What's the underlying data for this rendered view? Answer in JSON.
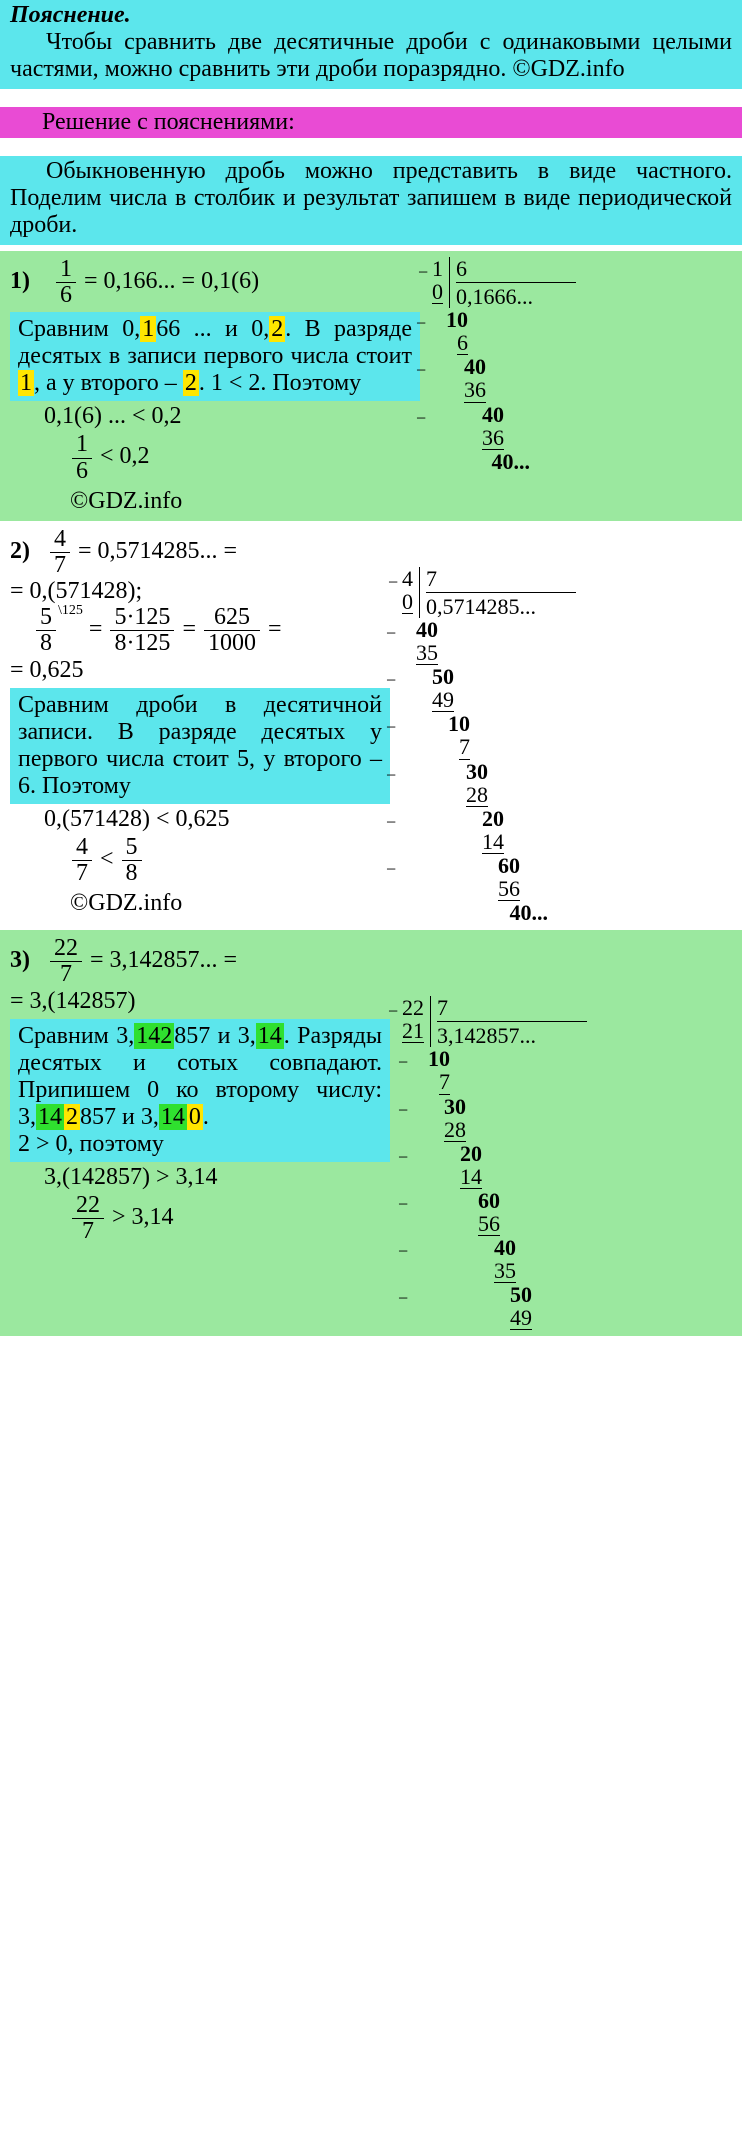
{
  "explain": {
    "title": "Пояснение.",
    "body": "Чтобы сравнить две десятичные дроби с одинаковыми целыми частями, можно сравнить эти дроби поразрядно. ©GDZ.info"
  },
  "solution_header": "Решение с пояснениями:",
  "intro": "Обыкновенную дробь можно представить в виде частного. Поделим числа в столбик и результат запишем в виде периодической дроби.",
  "p1": {
    "num": "1)",
    "frac_n": "1",
    "frac_d": "6",
    "eq_line": "= 0,166... = 0,1(6)",
    "compare1": "Сравним 0,",
    "compare1_h": "1",
    "compare1b": "66 ... и 0,",
    "compare1_h2": "2",
    "compare1c": ". В разряде десятых в записи первого числа стоит ",
    "compare1_h3": "1",
    "compare1d": ", а у второго – ",
    "compare1_h4": "2",
    "compare1e": ". 1 < 2. Поэтому",
    "res1": "0,1(6) ... < 0,2",
    "res2_n": "1",
    "res2_d": "6",
    "res2_tail": " < 0,2",
    "credit": "©GDZ.info",
    "ld": {
      "dividend": "1",
      "divisor": "6",
      "quotient": "0,1666...",
      "s1_ul": "0",
      "s2": "10",
      "s2_ul": "6",
      "s3": "40",
      "s3_ul": "36",
      "s4": "40",
      "s4_ul": "36",
      "s5": "40..."
    }
  },
  "p2": {
    "num": "2)",
    "frac_n": "4",
    "frac_d": "7",
    "eq1": "= 0,5714285... =",
    "eq2": "= 0,(571428);",
    "frac2_n": "5",
    "frac2_d": "8",
    "exp": "\\125",
    "mid": "=",
    "mn": "5·125",
    "md": "8·125",
    "eq3": "=",
    "rn": "625",
    "rd": "1000",
    "eq4": "=",
    "eq5": "= 0,625",
    "compare": "Сравним дроби в десятичной записи. В разряде десятых у первого числа стоит 5, у второго – 6. Поэтому",
    "res1": "0,(571428) < 0,625",
    "res2a_n": "4",
    "res2a_d": "7",
    "res2_lt": " < ",
    "res2b_n": "5",
    "res2b_d": "8",
    "credit": "©GDZ.info",
    "ld": {
      "dividend": "4",
      "divisor": "7",
      "quotient": "0,5714285...",
      "s1_ul": "0",
      "s2": "40",
      "s2_ul": "35",
      "s3": "50",
      "s3_ul": "49",
      "s4": "10",
      "s4_ul": "7",
      "s5": "30",
      "s5_ul": "28",
      "s6": "20",
      "s6_ul": "14",
      "s7": "60",
      "s7_ul": "56",
      "s8": "40..."
    }
  },
  "p3": {
    "num": "3)",
    "frac_n": "22",
    "frac_d": "7",
    "eq1": "= 3,142857... =",
    "eq2": "= 3,(142857)",
    "cmp_a": "Сравним 3,",
    "cmp_h1": "142",
    "cmp_b": "857 и 3,",
    "cmp_h2": "14",
    "cmp_c": ". Разряды десятых и сотых совпадают. Припишем 0 ко второму числу: 3,",
    "cmp_h3": "142",
    "cmp_d": "857 и 3,",
    "cmp_h4": "140",
    "cmp_e": ".",
    "cmp_f": "2 > 0, поэтому",
    "res1": "3,(142857) > 3,14",
    "res2_n": "22",
    "res2_d": "7",
    "res2_tail": " > 3,14",
    "ld": {
      "dividend": "22",
      "divisor": "7",
      "quotient": "3,142857...",
      "s1_ul": "21",
      "s2": "10",
      "s2_ul": "7",
      "s3": "30",
      "s3_ul": "28",
      "s4": "20",
      "s4_ul": "14",
      "s5": "60",
      "s5_ul": "56",
      "s6": "40",
      "s6_ul": "35",
      "s7": "50",
      "s7_ul": "49"
    }
  },
  "wm": "GDZ.INFO",
  "colors": {
    "cyan": "#5ce6ec",
    "green": "#9be89f",
    "pink": "#e94bd4",
    "yellow": "#ffe600",
    "brightgreen": "#2fe02f"
  }
}
